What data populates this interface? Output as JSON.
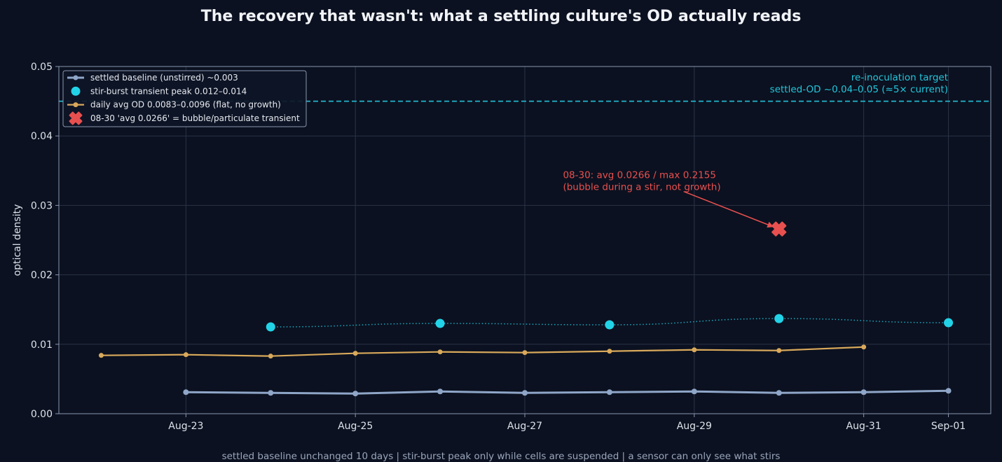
{
  "chart_data": {
    "type": "line",
    "title": "The recovery that wasn't: what a settling culture's OD actually reads",
    "ylabel": "optical density",
    "xlabel": "",
    "footer": "settled baseline unchanged 10 days  |  stir-burst peak only while cells are suspended  |  a sensor can only see what stirs",
    "x_range": [
      "2025-08-21T12:00",
      "2025-09-01T12:00"
    ],
    "ylim": [
      0,
      0.05
    ],
    "x_ticks": [
      {
        "date": "2025-08-23",
        "label": "Aug-23"
      },
      {
        "date": "2025-08-25",
        "label": "Aug-25"
      },
      {
        "date": "2025-08-27",
        "label": "Aug-27"
      },
      {
        "date": "2025-08-29",
        "label": "Aug-29"
      },
      {
        "date": "2025-08-31",
        "label": "Aug-31"
      },
      {
        "date": "2025-09-01",
        "label": "Sep-01"
      }
    ],
    "y_ticks": [
      {
        "value": 0,
        "label": "0.00"
      },
      {
        "value": 0.01,
        "label": "0.01"
      },
      {
        "value": 0.02,
        "label": "0.02"
      },
      {
        "value": 0.03,
        "label": "0.03"
      },
      {
        "value": 0.04,
        "label": "0.04"
      },
      {
        "value": 0.05,
        "label": "0.05"
      }
    ],
    "grid": true,
    "legend_position": "top-left",
    "series": [
      {
        "name": "settled baseline (unstirred) ~0.003",
        "style": "line-marker",
        "color": "#8fa6c8",
        "points": [
          {
            "x": "2025-08-23",
            "y": 0.0031
          },
          {
            "x": "2025-08-24",
            "y": 0.003
          },
          {
            "x": "2025-08-25",
            "y": 0.0029
          },
          {
            "x": "2025-08-26",
            "y": 0.0032
          },
          {
            "x": "2025-08-27",
            "y": 0.003
          },
          {
            "x": "2025-08-28",
            "y": 0.0031
          },
          {
            "x": "2025-08-29",
            "y": 0.0032
          },
          {
            "x": "2025-08-30",
            "y": 0.003
          },
          {
            "x": "2025-08-31",
            "y": 0.0031
          },
          {
            "x": "2025-09-01",
            "y": 0.0033
          }
        ]
      },
      {
        "name": "stir-burst transient peak 0.012–0.014",
        "style": "scatter-dotted",
        "color": "#22d3e8",
        "points": [
          {
            "x": "2025-08-24",
            "y": 0.0125
          },
          {
            "x": "2025-08-26",
            "y": 0.013
          },
          {
            "x": "2025-08-28",
            "y": 0.0128
          },
          {
            "x": "2025-08-30",
            "y": 0.0137
          },
          {
            "x": "2025-09-01",
            "y": 0.0131
          }
        ]
      },
      {
        "name": "daily avg OD 0.0083–0.0096 (flat, no growth)",
        "style": "line-marker",
        "color": "#d9a95b",
        "points": [
          {
            "x": "2025-08-22",
            "y": 0.0084
          },
          {
            "x": "2025-08-23",
            "y": 0.0085
          },
          {
            "x": "2025-08-24",
            "y": 0.0083
          },
          {
            "x": "2025-08-25",
            "y": 0.0087
          },
          {
            "x": "2025-08-26",
            "y": 0.0089
          },
          {
            "x": "2025-08-27",
            "y": 0.0088
          },
          {
            "x": "2025-08-28",
            "y": 0.009
          },
          {
            "x": "2025-08-29",
            "y": 0.0092
          },
          {
            "x": "2025-08-30",
            "y": 0.0091
          },
          {
            "x": "2025-08-31",
            "y": 0.0096
          }
        ]
      },
      {
        "name": "08-30 'avg 0.0266' = bubble/particulate transient",
        "style": "x-marker",
        "color": "#e8504f",
        "points": [
          {
            "x": "2025-08-30",
            "y": 0.0266
          }
        ]
      }
    ],
    "reference_line": {
      "y": 0.045,
      "color": "#22b5cc",
      "label_lines": [
        "re-inoculation target",
        "settled-OD ~0.04–0.05 (≈5× current)"
      ]
    },
    "annotation": {
      "text_lines": [
        "08-30: avg 0.0266 / max 0.2155",
        "(bubble during a stir, not growth)"
      ],
      "text_at": {
        "x": "2025-08-27T12:00",
        "y": 0.0335
      },
      "arrow_from": {
        "x": "2025-08-28T21:00",
        "y": 0.032
      },
      "arrow_to": {
        "x": "2025-08-30",
        "y": 0.0266
      },
      "color": "#e8504f"
    }
  }
}
